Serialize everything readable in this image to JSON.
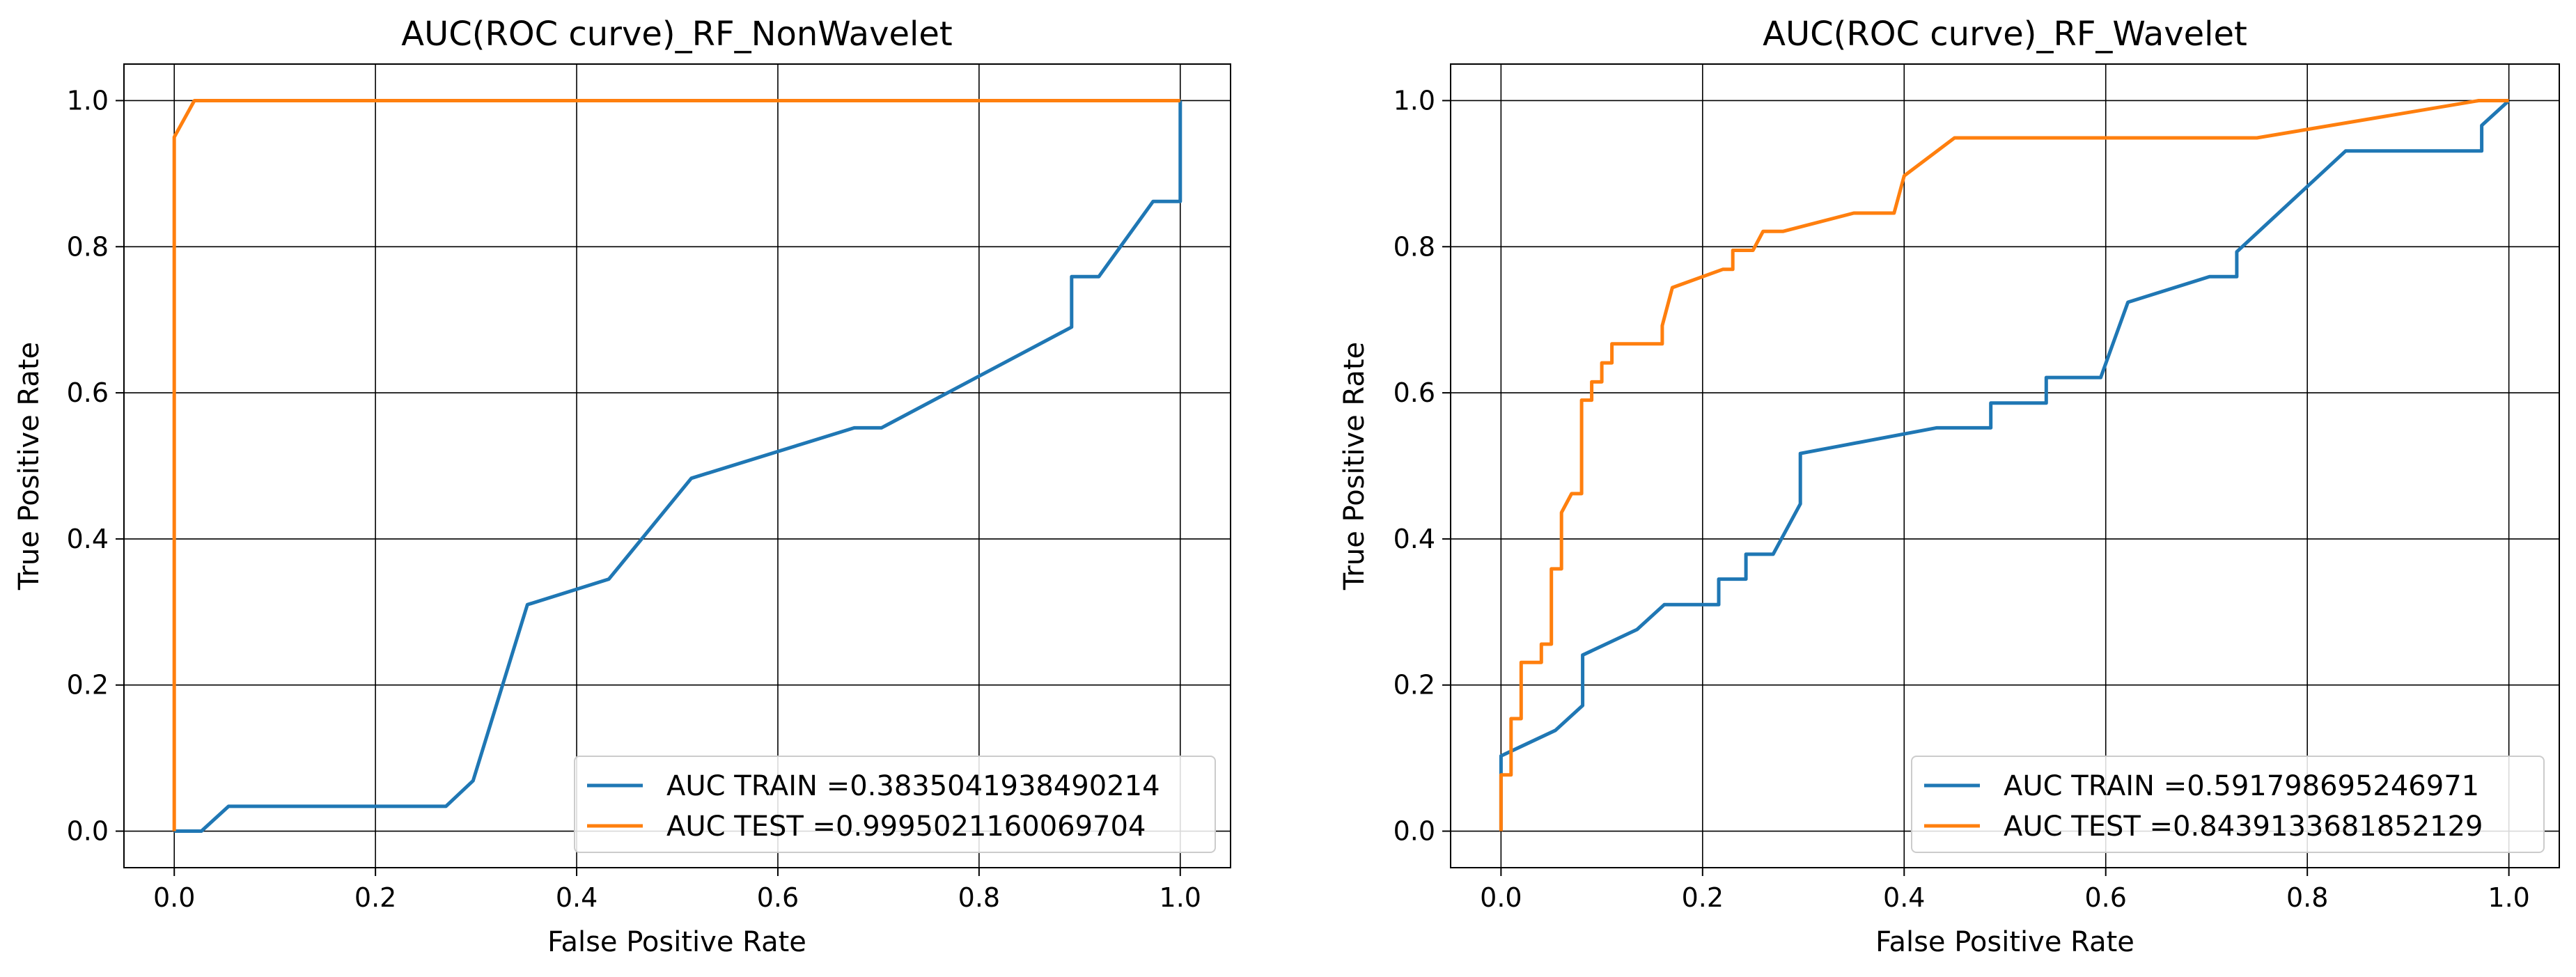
{
  "colors": {
    "train": "#1f77b4",
    "test": "#ff7f0e",
    "grid": "#000000",
    "axes": "#000000",
    "background": "#ffffff",
    "legend_border": "#cccccc"
  },
  "chart_data": [
    {
      "type": "line",
      "title": "AUC(ROC curve)_RF_NonWavelet",
      "xlabel": "False Positive Rate",
      "ylabel": "True Positive Rate",
      "xlim": [
        -0.05,
        1.05
      ],
      "ylim": [
        -0.05,
        1.05
      ],
      "xticks": [
        0.0,
        0.2,
        0.4,
        0.6,
        0.8,
        1.0
      ],
      "yticks": [
        0.0,
        0.2,
        0.4,
        0.6,
        0.8,
        1.0
      ],
      "tick_labels_x": [
        "0.0",
        "0.2",
        "0.4",
        "0.6",
        "0.8",
        "1.0"
      ],
      "tick_labels_y": [
        "0.0",
        "0.2",
        "0.4",
        "0.6",
        "0.8",
        "1.0"
      ],
      "grid": true,
      "legend_position": "lower-right",
      "series": [
        {
          "name": "AUC TRAIN =0.3835041938490214",
          "color": "train",
          "x": [
            0.0,
            0.027,
            0.054,
            0.27,
            0.297,
            0.351,
            0.432,
            0.514,
            0.676,
            0.703,
            0.892,
            0.892,
            0.919,
            0.973,
            1.0,
            1.0
          ],
          "y": [
            0.0,
            0.0,
            0.034,
            0.034,
            0.069,
            0.31,
            0.345,
            0.483,
            0.552,
            0.552,
            0.69,
            0.759,
            0.759,
            0.862,
            0.862,
            1.0
          ]
        },
        {
          "name": "AUC TEST =0.9995021160069704",
          "color": "test",
          "x": [
            0.0,
            0.0,
            0.02,
            1.0
          ],
          "y": [
            0.0,
            0.95,
            1.0,
            1.0
          ]
        }
      ]
    },
    {
      "type": "line",
      "title": "AUC(ROC curve)_RF_Wavelet",
      "xlabel": "False Positive Rate",
      "ylabel": "True Positive Rate",
      "xlim": [
        -0.05,
        1.05
      ],
      "ylim": [
        -0.05,
        1.05
      ],
      "xticks": [
        0.0,
        0.2,
        0.4,
        0.6,
        0.8,
        1.0
      ],
      "yticks": [
        0.0,
        0.2,
        0.4,
        0.6,
        0.8,
        1.0
      ],
      "tick_labels_x": [
        "0.0",
        "0.2",
        "0.4",
        "0.6",
        "0.8",
        "1.0"
      ],
      "tick_labels_y": [
        "0.0",
        "0.2",
        "0.4",
        "0.6",
        "0.8",
        "1.0"
      ],
      "grid": true,
      "legend_position": "lower-right",
      "series": [
        {
          "name": "AUC TRAIN =0.591798695246971",
          "color": "train",
          "x": [
            0.0,
            0.0,
            0.054,
            0.081,
            0.081,
            0.135,
            0.162,
            0.216,
            0.216,
            0.243,
            0.243,
            0.27,
            0.297,
            0.297,
            0.432,
            0.486,
            0.486,
            0.541,
            0.541,
            0.595,
            0.622,
            0.703,
            0.73,
            0.73,
            0.838,
            0.973,
            0.973,
            1.0
          ],
          "y": [
            0.0,
            0.103,
            0.138,
            0.172,
            0.241,
            0.276,
            0.31,
            0.31,
            0.345,
            0.345,
            0.379,
            0.379,
            0.448,
            0.517,
            0.552,
            0.552,
            0.586,
            0.586,
            0.621,
            0.621,
            0.724,
            0.759,
            0.759,
            0.793,
            0.931,
            0.931,
            0.966,
            1.0
          ]
        },
        {
          "name": "AUC TEST =0.8439133681852129",
          "color": "test",
          "x": [
            0.0,
            0.0,
            0.01,
            0.01,
            0.02,
            0.02,
            0.04,
            0.04,
            0.05,
            0.05,
            0.06,
            0.06,
            0.07,
            0.07,
            0.08,
            0.08,
            0.09,
            0.09,
            0.1,
            0.1,
            0.11,
            0.11,
            0.16,
            0.16,
            0.17,
            0.22,
            0.23,
            0.23,
            0.25,
            0.26,
            0.28,
            0.35,
            0.39,
            0.4,
            0.45,
            0.75,
            0.97,
            1.0
          ],
          "y": [
            0.0,
            0.077,
            0.077,
            0.154,
            0.154,
            0.231,
            0.231,
            0.256,
            0.256,
            0.359,
            0.359,
            0.436,
            0.462,
            0.462,
            0.462,
            0.59,
            0.59,
            0.615,
            0.615,
            0.641,
            0.641,
            0.667,
            0.667,
            0.692,
            0.744,
            0.769,
            0.769,
            0.795,
            0.795,
            0.821,
            0.821,
            0.846,
            0.846,
            0.897,
            0.949,
            0.949,
            1.0,
            1.0
          ]
        }
      ]
    }
  ]
}
